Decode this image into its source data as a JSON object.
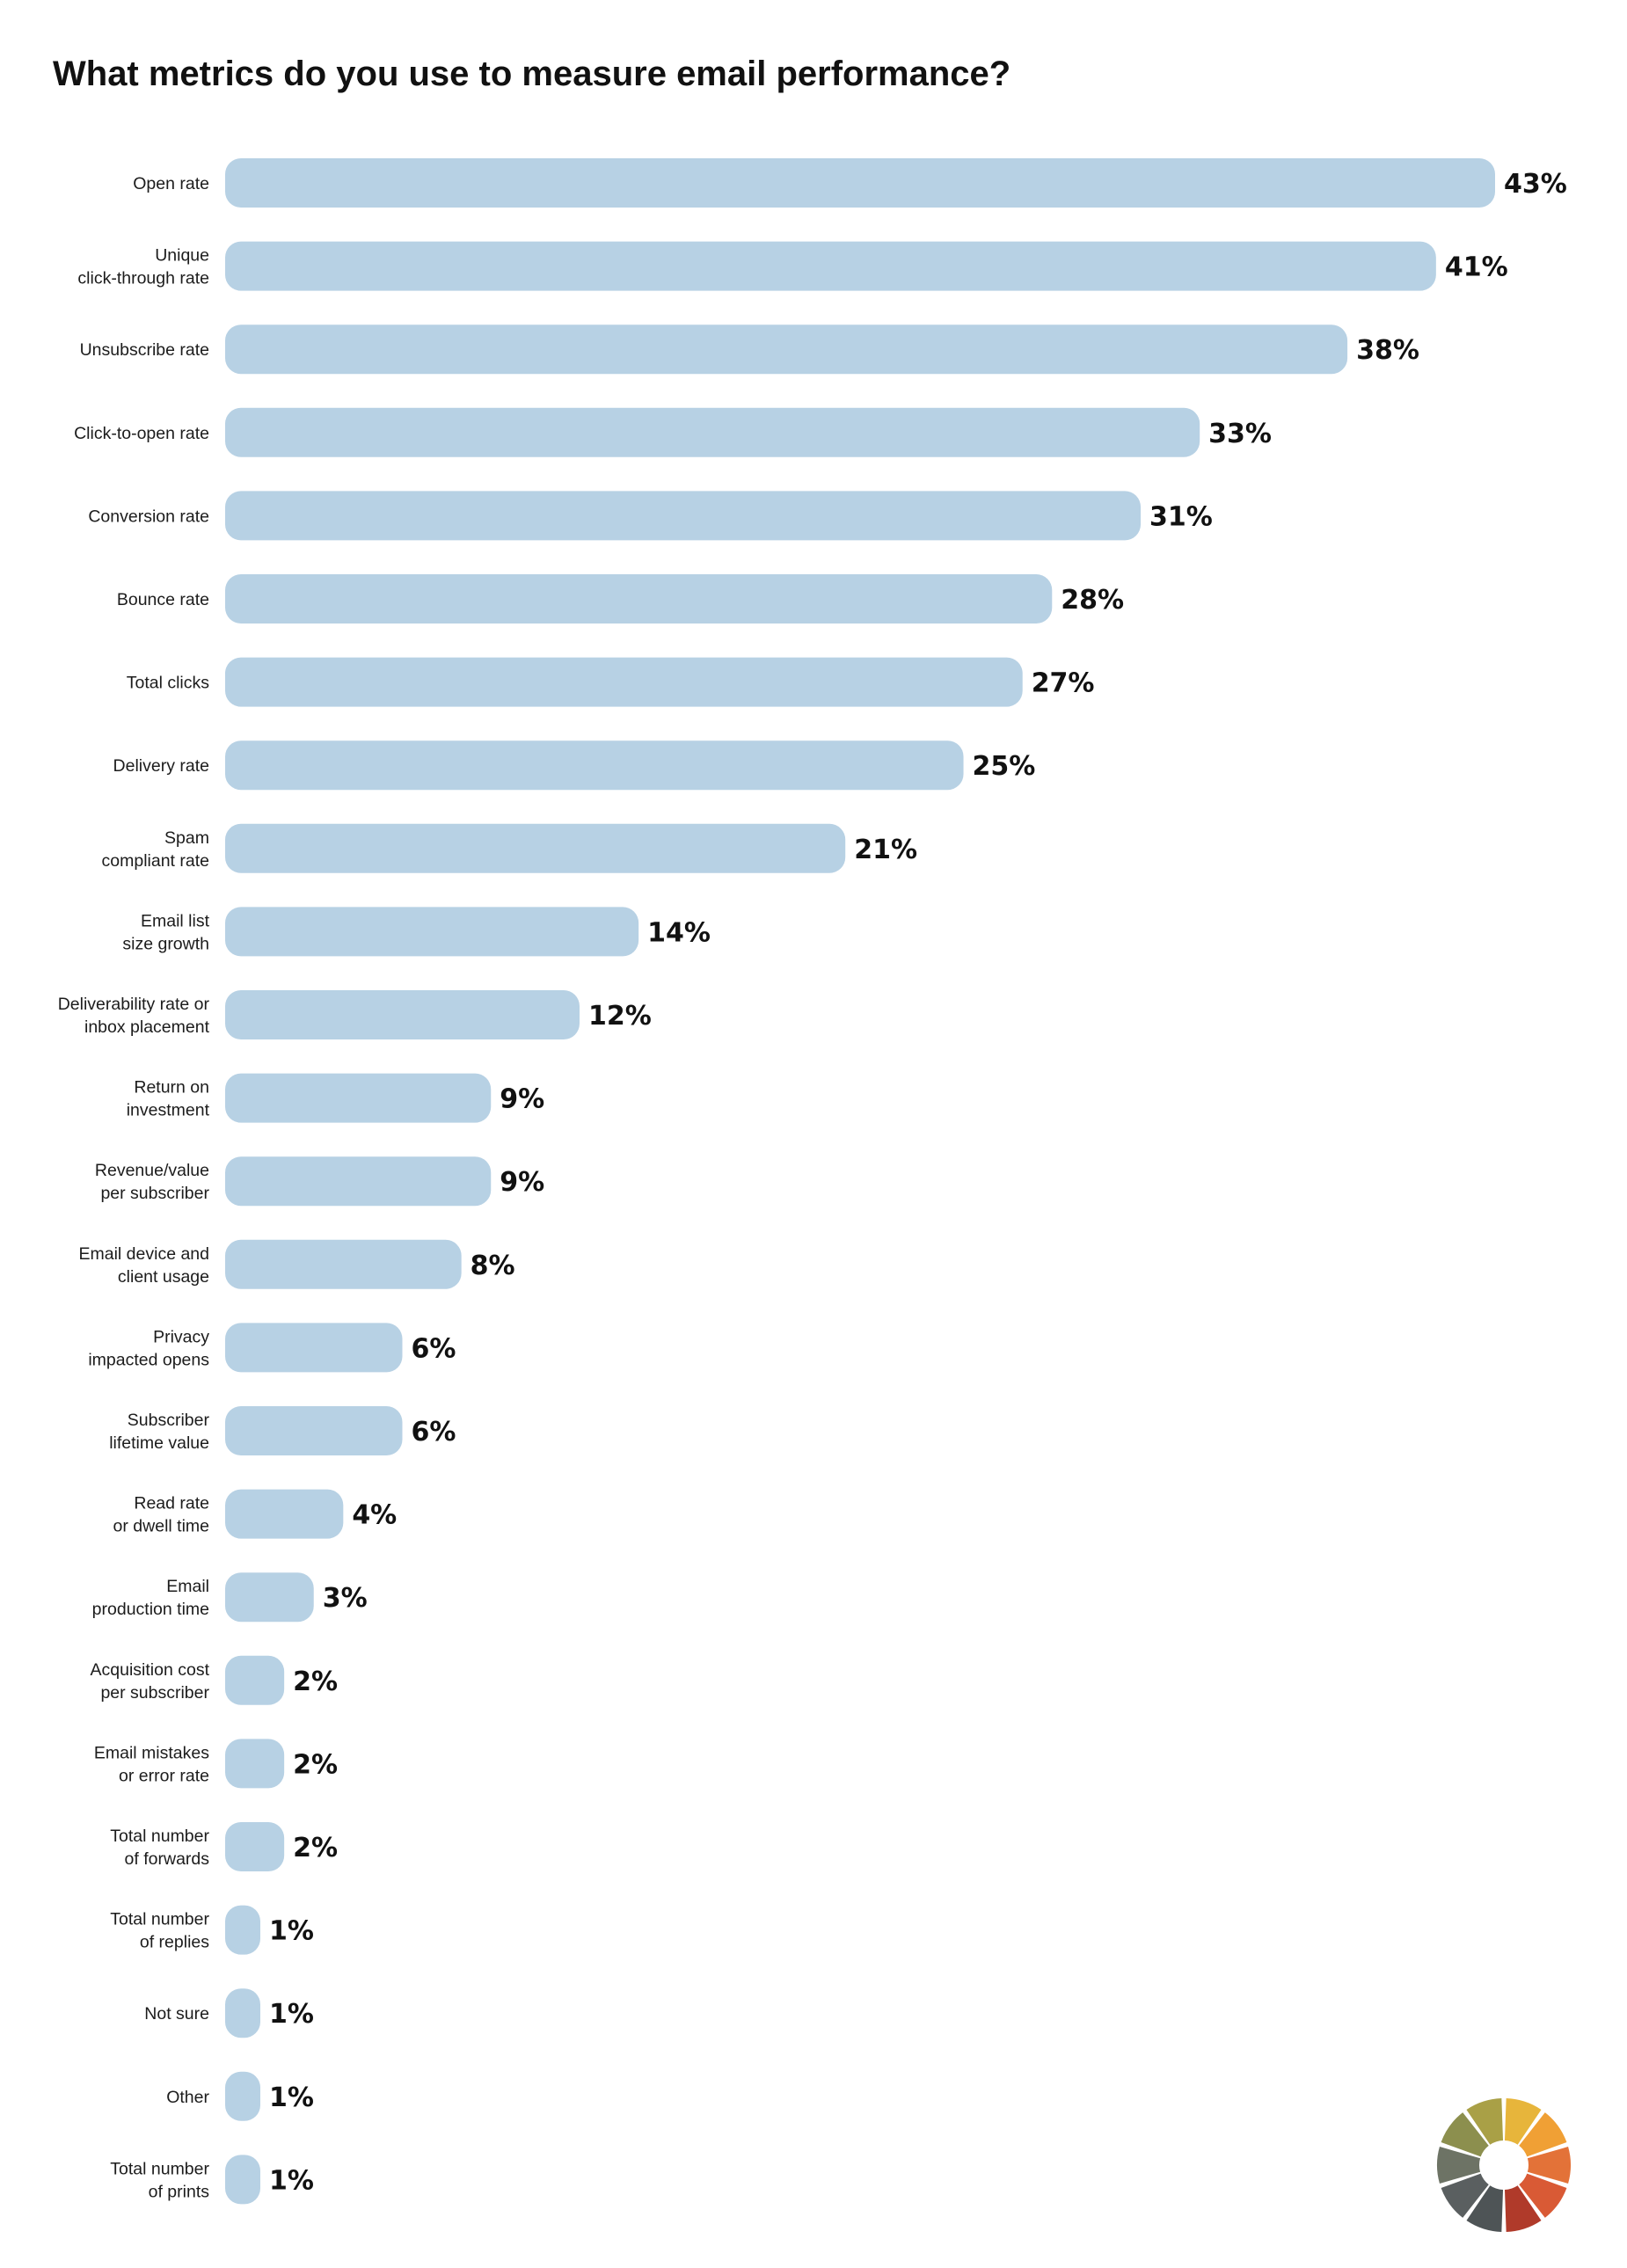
{
  "title": "What metrics do you use to measure email performance?",
  "chart_data": {
    "type": "bar",
    "orientation": "horizontal",
    "title": "What metrics do you use to measure email performance?",
    "xlabel": "",
    "ylabel": "",
    "unit": "%",
    "categories": [
      "Open rate",
      "Unique\nclick-through rate",
      "Unsubscribe rate",
      "Click-to-open rate",
      "Conversion rate",
      "Bounce rate",
      "Total clicks",
      "Delivery rate",
      "Spam\ncompliant rate",
      "Email list\nsize growth",
      "Deliverability rate or\ninbox placement",
      "Return on\ninvestment",
      "Revenue/value\nper subscriber",
      "Email device and\nclient usage",
      "Privacy\nimpacted opens",
      "Subscriber\nlifetime value",
      "Read rate\nor dwell time",
      "Email\nproduction time",
      "Acquisition cost\nper subscriber",
      "Email mistakes\nor error rate",
      "Total number\nof forwards",
      "Total number\nof replies",
      "Not sure",
      "Other",
      "Total number\nof prints"
    ],
    "values": [
      43,
      41,
      38,
      33,
      31,
      28,
      27,
      25,
      21,
      14,
      12,
      9,
      9,
      8,
      6,
      6,
      4,
      3,
      2,
      2,
      2,
      1,
      1,
      1,
      1
    ],
    "value_labels": [
      "43%",
      "41%",
      "38%",
      "33%",
      "31%",
      "28%",
      "27%",
      "25%",
      "21%",
      "14%",
      "12%",
      "9%",
      "9%",
      "8%",
      "6%",
      "6%",
      "4%",
      "3%",
      "2%",
      "2%",
      "2%",
      "1%",
      "1%",
      "1%",
      "1%"
    ],
    "grid": false,
    "legend": "none",
    "bar_color": "#b7d1e4"
  },
  "logo": {
    "icon": "color-wheel-logo-icon",
    "colors": [
      "#e7b53b",
      "#f0a035",
      "#e37238",
      "#d95a35",
      "#b03a2a",
      "#4e5456",
      "#5a5f60",
      "#6d7365",
      "#8c8f4e",
      "#a9a046"
    ]
  }
}
